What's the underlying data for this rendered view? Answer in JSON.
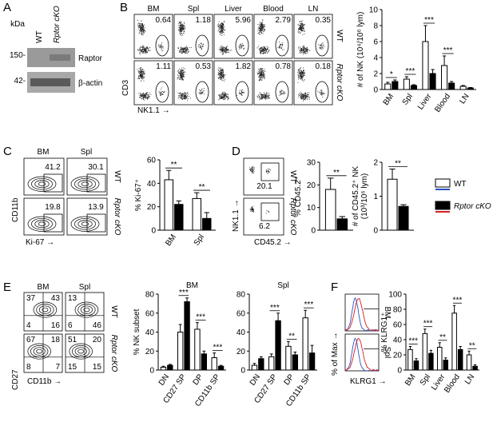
{
  "panels": [
    "A",
    "B",
    "C",
    "D",
    "E",
    "F"
  ],
  "blot": {
    "unit": "kDa",
    "lanes": [
      "WT",
      "Rptor cKO"
    ],
    "markers": [
      "150-",
      "42-"
    ],
    "bands": [
      "Raptor",
      "β-actin"
    ]
  },
  "flow_b": {
    "columns": [
      "BM",
      "Spl",
      "Liver",
      "Blood",
      "LN"
    ],
    "rows": [
      "WT",
      "Rptor cKO"
    ],
    "values": [
      [
        0.64,
        1.18,
        5.96,
        2.79,
        0.35
      ],
      [
        1.11,
        0.53,
        1.82,
        0.78,
        0.18
      ]
    ],
    "ylabel": "CD3",
    "xlabel": "NK1.1 →"
  },
  "flow_c": {
    "columns": [
      "BM",
      "Spl"
    ],
    "rows": [
      "WT",
      "Rptor cKO"
    ],
    "values": [
      [
        41.2,
        30.1
      ],
      [
        19.8,
        13.9
      ]
    ],
    "ylabel": "CD11b",
    "xlabel": "Ki-67 →"
  },
  "flow_d": {
    "rows": [
      "WT",
      "Rptor cKO"
    ],
    "values": [
      20.1,
      6.2
    ],
    "ylabel": "NK1.1 →",
    "xlabel": "CD45.2 →"
  },
  "flow_e": {
    "columns": [
      "BM",
      "Spl"
    ],
    "rows": [
      "WT",
      "Rptor cKO"
    ],
    "quadrants": [
      [
        [
          37,
          43,
          4,
          16
        ],
        [
          13,
          null,
          6,
          46
        ]
      ],
      [
        [
          67,
          18,
          8,
          7
        ],
        [
          51,
          20,
          15,
          15
        ]
      ]
    ],
    "ylabel": "CD27",
    "xlabel": "CD11b →"
  },
  "flow_f": {
    "rows": [
      "BM",
      "Spl"
    ],
    "ylabel": "% of Max →",
    "xlabel": "KLRG1 →",
    "line_colors": [
      "#2b4fc7",
      "#d42020"
    ]
  },
  "chart_data": [
    {
      "type": "bar",
      "ylabel": "# of NK (10⁴/10⁶ lym)",
      "categories": [
        "BM",
        "Spl",
        "Liver",
        "Blood",
        "LN"
      ],
      "series": [
        {
          "name": "WT",
          "color": "#ffffff",
          "values": [
            0.7,
            1.3,
            6.0,
            3.0,
            0.4
          ],
          "errors": [
            0.2,
            0.3,
            2.0,
            1.2,
            0.1
          ]
        },
        {
          "name": "Rptor cKO",
          "color": "#000000",
          "values": [
            1.0,
            0.5,
            2.0,
            0.8,
            0.2
          ],
          "errors": [
            0.2,
            0.1,
            0.5,
            0.2,
            0.05
          ]
        }
      ],
      "significance": [
        "*",
        "***",
        "***",
        "***",
        null
      ],
      "ylim": [
        0,
        10
      ],
      "yticks": [
        0,
        2,
        4,
        6,
        8,
        10
      ]
    },
    {
      "type": "bar",
      "ylabel": "% Ki-67⁺",
      "categories": [
        "BM",
        "Spl"
      ],
      "series": [
        {
          "name": "WT",
          "color": "#ffffff",
          "values": [
            43,
            27
          ],
          "errors": [
            8,
            5
          ]
        },
        {
          "name": "Rptor cKO",
          "color": "#000000",
          "values": [
            22,
            10
          ],
          "errors": [
            3,
            5
          ]
        }
      ],
      "significance": [
        "**",
        "**"
      ],
      "ylim": [
        0,
        60
      ],
      "yticks": [
        0,
        20,
        40,
        60
      ]
    },
    {
      "type": "bar",
      "ylabel": "% CD45.2⁺",
      "categories": [
        null
      ],
      "series": [
        {
          "name": "WT",
          "color": "#ffffff",
          "values": [
            18
          ],
          "errors": [
            5
          ]
        },
        {
          "name": "Rptor cKO",
          "color": "#000000",
          "values": [
            5
          ],
          "errors": [
            1
          ]
        }
      ],
      "significance": [
        "**"
      ],
      "ylim": [
        0,
        30
      ],
      "yticks": [
        0,
        10,
        20,
        30
      ]
    },
    {
      "type": "bar",
      "ylabel": [
        "# of CD45.2⁺ NK",
        "(10³/10⁶ lym)"
      ],
      "categories": [
        null
      ],
      "series": [
        {
          "name": "WT",
          "color": "#ffffff",
          "values": [
            1.5
          ],
          "errors": [
            0.3
          ]
        },
        {
          "name": "Rptor cKO",
          "color": "#000000",
          "values": [
            0.7
          ],
          "errors": [
            0.05
          ]
        }
      ],
      "significance": [
        "**"
      ],
      "ylim": [
        0,
        2
      ],
      "yticks": [
        0,
        1,
        2
      ]
    },
    {
      "type": "bar",
      "title": "BM",
      "ylabel": "% NK subset",
      "categories": [
        "DN",
        "CD27 SP",
        "DP",
        "CD11b SP"
      ],
      "series": [
        {
          "name": "WT",
          "color": "#ffffff",
          "values": [
            3,
            40,
            43,
            13
          ],
          "errors": [
            1,
            8,
            7,
            5
          ]
        },
        {
          "name": "Rptor cKO",
          "color": "#000000",
          "values": [
            5,
            72,
            17,
            4
          ],
          "errors": [
            1,
            4,
            3,
            1
          ]
        }
      ],
      "significance": [
        null,
        "***",
        "***",
        "***"
      ],
      "ylim": [
        0,
        80
      ],
      "yticks": [
        0,
        20,
        40,
        60,
        80
      ]
    },
    {
      "type": "bar",
      "title": "Spl",
      "categories": [
        "DN",
        "CD27 SP",
        "DP",
        "CD11b SP"
      ],
      "series": [
        {
          "name": "WT",
          "color": "#ffffff",
          "values": [
            5,
            14,
            25,
            55
          ],
          "errors": [
            2,
            3,
            5,
            8
          ]
        },
        {
          "name": "Rptor cKO",
          "color": "#000000",
          "values": [
            12,
            52,
            16,
            18
          ],
          "errors": [
            2,
            8,
            3,
            8
          ]
        }
      ],
      "significance": [
        null,
        "***",
        "**",
        "***"
      ],
      "ylim": [
        0,
        80
      ],
      "yticks": [
        0,
        20,
        40,
        60,
        80
      ]
    },
    {
      "type": "bar",
      "ylabel": "% KLRG1⁺",
      "categories": [
        "BM",
        "Spl",
        "Liver",
        "Blood",
        "LN"
      ],
      "series": [
        {
          "name": "WT",
          "color": "#ffffff",
          "values": [
            27,
            48,
            30,
            75,
            20
          ],
          "errors": [
            4,
            6,
            6,
            10,
            5
          ]
        },
        {
          "name": "Rptor cKO",
          "color": "#000000",
          "values": [
            12,
            22,
            13,
            27,
            5
          ],
          "errors": [
            3,
            4,
            3,
            4,
            2
          ]
        }
      ],
      "significance": [
        "***",
        "***",
        "**",
        "***",
        "**"
      ],
      "ylim": [
        0,
        100
      ],
      "yticks": [
        0,
        20,
        40,
        60,
        80,
        100
      ]
    }
  ]
}
